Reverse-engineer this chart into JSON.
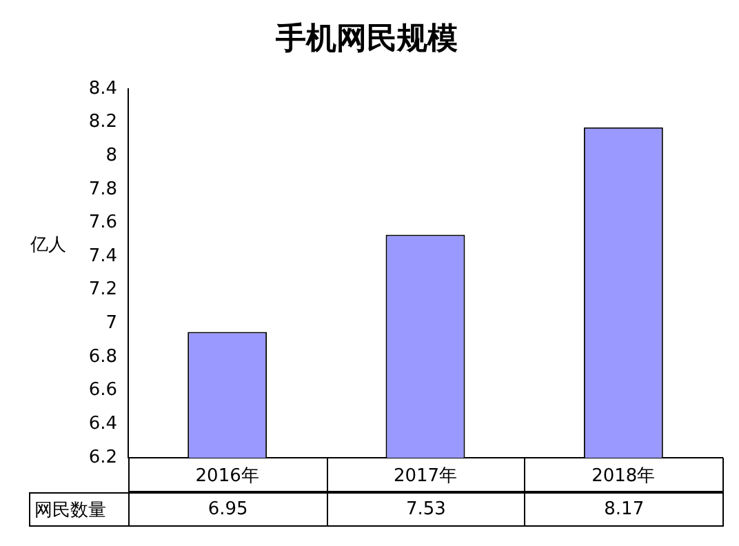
{
  "chart_data": {
    "type": "bar",
    "title": "手机网民规模",
    "ylabel": "亿人",
    "categories": [
      "2016年",
      "2017年",
      "2018年"
    ],
    "series": [
      {
        "name": "网民数量",
        "color": "#9999ff",
        "values": [
          6.95,
          7.53,
          8.17
        ]
      }
    ],
    "ylim": [
      6.2,
      8.4
    ],
    "yticks": [
      6.2,
      6.4,
      6.6,
      6.8,
      7,
      7.2,
      7.4,
      7.6,
      7.8,
      8,
      8.2,
      8.4
    ],
    "grid": false,
    "legend": false,
    "data_labels": true
  }
}
